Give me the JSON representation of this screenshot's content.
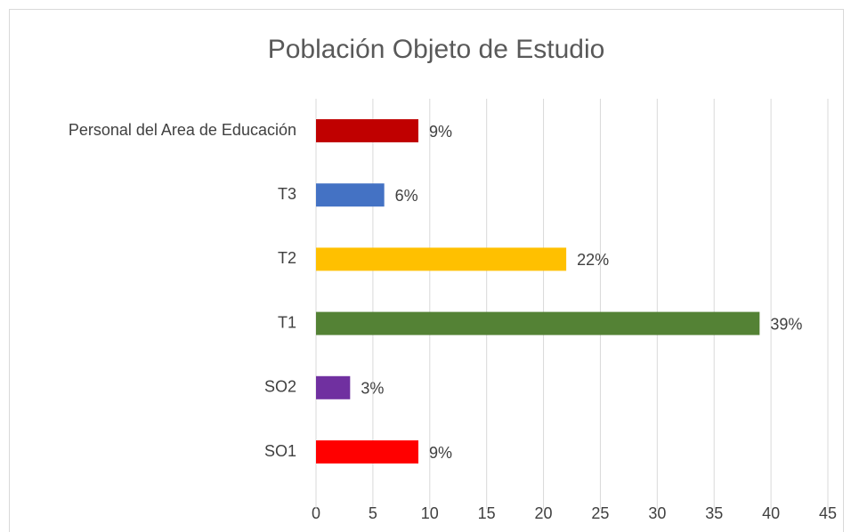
{
  "chart_data": {
    "type": "bar",
    "orientation": "horizontal",
    "title": "Población Objeto de Estudio",
    "categories": [
      "SO1",
      "SO2",
      "T1",
      "T2",
      "T3",
      "Personal del Area de Educación"
    ],
    "values": [
      9,
      3,
      39,
      22,
      6,
      9
    ],
    "value_labels": [
      "9%",
      "3%",
      "39%",
      "22%",
      "6%",
      "9%"
    ],
    "colors": [
      "#ff0000",
      "#7030a0",
      "#548235",
      "#ffc000",
      "#4472c4",
      "#c00000"
    ],
    "xlim": [
      0,
      45
    ],
    "xticks": [
      0,
      5,
      10,
      15,
      20,
      25,
      30,
      35,
      40,
      45
    ],
    "grid": true
  }
}
